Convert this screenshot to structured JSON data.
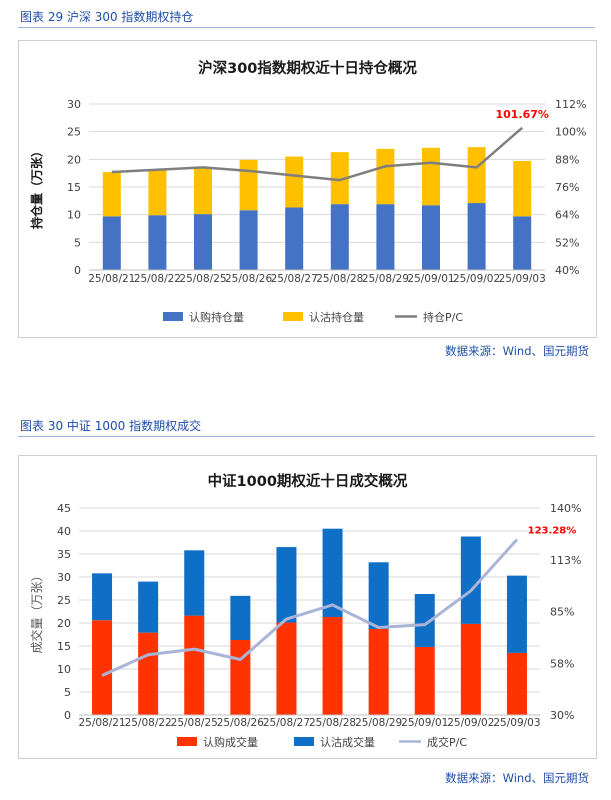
{
  "figures": [
    {
      "caption": "图表 29  沪深 300 指数期权持仓",
      "source": "数据来源：Wind、国元期货"
    },
    {
      "caption": "图表 30  中证 1000 指数期权成交",
      "source": "数据来源：Wind、国元期货"
    }
  ],
  "chart_data": [
    {
      "type": "bar",
      "title": "沪深300指数期权近十日持仓概况",
      "xlabel": "",
      "ylabel": "持仓量（万张）",
      "categories": [
        "25/08/21",
        "25/08/22",
        "25/08/25",
        "25/08/26",
        "25/08/27",
        "25/08/28",
        "25/08/29",
        "25/09/01",
        "25/09/02",
        "25/09/03"
      ],
      "stacked": true,
      "ylim": [
        0,
        30
      ],
      "yticks": [
        "0",
        "5",
        "10",
        "15",
        "20",
        "25",
        "30"
      ],
      "y2lim": [
        40,
        112
      ],
      "y2ticks": [
        "40%",
        "52%",
        "64%",
        "76%",
        "88%",
        "100%",
        "112%"
      ],
      "series": [
        {
          "name": "认购持仓量",
          "kind": "bar",
          "axis": "left",
          "color": "#4472c4",
          "values": [
            9.7,
            9.9,
            10.1,
            10.8,
            11.3,
            11.9,
            11.9,
            11.7,
            12.1,
            9.7
          ]
        },
        {
          "name": "认沽持仓量",
          "kind": "bar",
          "axis": "left",
          "color": "#ffc000",
          "values": [
            8.0,
            8.2,
            8.4,
            9.1,
            9.2,
            9.4,
            10.0,
            10.4,
            10.1,
            10.0
          ]
        },
        {
          "name": "持仓P/C",
          "kind": "line",
          "axis": "right",
          "color": "#7f7f7f",
          "values": [
            82.5,
            83.5,
            84.5,
            83.0,
            81.0,
            79.0,
            85.0,
            86.5,
            84.5,
            101.67
          ]
        }
      ],
      "annotation": {
        "text": "101.67%",
        "index": 9,
        "color": "#ff0000"
      },
      "legend_position": "bottom"
    },
    {
      "type": "bar",
      "title": "中证1000期权近十日成交概况",
      "xlabel": "",
      "ylabel": "成交量（万张）",
      "categories": [
        "25/08/21",
        "25/08/22",
        "25/08/25",
        "25/08/26",
        "25/08/27",
        "25/08/28",
        "25/08/29",
        "25/09/01",
        "25/09/02",
        "25/09/03"
      ],
      "stacked": true,
      "ylim": [
        0,
        45
      ],
      "yticks": [
        "0",
        "5",
        "10",
        "15",
        "20",
        "25",
        "30",
        "35",
        "40",
        "45"
      ],
      "y2lim": [
        30,
        140
      ],
      "y2ticks": [
        "30%",
        "58%",
        "85%",
        "113%",
        "140%"
      ],
      "series": [
        {
          "name": "认购成交量",
          "kind": "bar",
          "axis": "left",
          "color": "#ff3300",
          "values": [
            20.6,
            17.9,
            21.6,
            16.3,
            20.1,
            21.3,
            18.7,
            14.8,
            19.8,
            13.5
          ]
        },
        {
          "name": "认沽成交量",
          "kind": "bar",
          "axis": "left",
          "color": "#0f6fc6",
          "values": [
            10.2,
            11.1,
            14.2,
            9.6,
            16.4,
            19.2,
            14.5,
            11.5,
            19.0,
            16.8
          ]
        },
        {
          "name": "成交P/C",
          "kind": "line",
          "axis": "right",
          "color": "#aab4d8",
          "values": [
            51.0,
            62.0,
            65.0,
            59.5,
            81.0,
            88.5,
            76.5,
            78.0,
            96.0,
            123.28
          ]
        }
      ],
      "annotation": {
        "text": "123.28%",
        "index": 9,
        "color": "#ff0000"
      },
      "legend_position": "bottom"
    }
  ]
}
